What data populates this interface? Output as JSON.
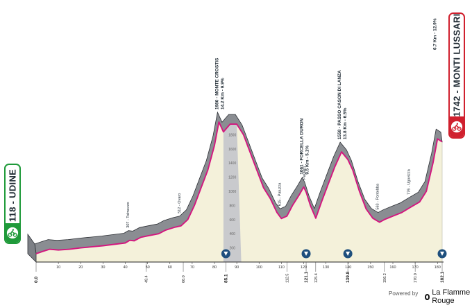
{
  "start": {
    "label": "118 - UDINE",
    "color": "#1f9a3a"
  },
  "finish": {
    "label": "1742 - MONTI LUSSARI",
    "color": "#d0202e",
    "climb_note": "6.7 Km - 12.9%"
  },
  "axis": {
    "distance_ticks": [
      "10",
      "20",
      "30",
      "40",
      "50",
      "60",
      "70",
      "80",
      "90",
      "100",
      "110",
      "120",
      "130",
      "140",
      "150",
      "160",
      "170",
      "180"
    ],
    "altitude_ticks": [
      "200",
      "400",
      "600",
      "800",
      "1000",
      "1200",
      "1400",
      "1600",
      "1800"
    ]
  },
  "km_markers": [
    "0.0",
    "49.4",
    "66.0",
    "85.1",
    "112.5",
    "121.1",
    "125.4",
    "139.8",
    "156.2",
    "170.0",
    "182.1"
  ],
  "profile": [
    {
      "km": 0,
      "alt": 118
    },
    {
      "km": 3,
      "alt": 150
    },
    {
      "km": 6,
      "alt": 180
    },
    {
      "km": 10,
      "alt": 170
    },
    {
      "km": 15,
      "alt": 180
    },
    {
      "km": 20,
      "alt": 200
    },
    {
      "km": 25,
      "alt": 215
    },
    {
      "km": 30,
      "alt": 230
    },
    {
      "km": 35,
      "alt": 250
    },
    {
      "km": 40,
      "alt": 270
    },
    {
      "km": 42,
      "alt": 307
    },
    {
      "km": 44,
      "alt": 300
    },
    {
      "km": 47,
      "alt": 350
    },
    {
      "km": 50,
      "alt": 370
    },
    {
      "km": 55,
      "alt": 400
    },
    {
      "km": 58,
      "alt": 450
    },
    {
      "km": 62,
      "alt": 490
    },
    {
      "km": 65,
      "alt": 512
    },
    {
      "km": 68,
      "alt": 600
    },
    {
      "km": 71,
      "alt": 800
    },
    {
      "km": 74,
      "alt": 1050
    },
    {
      "km": 77,
      "alt": 1300
    },
    {
      "km": 80,
      "alt": 1650
    },
    {
      "km": 82,
      "alt": 1980
    },
    {
      "km": 84,
      "alt": 1840
    },
    {
      "km": 87,
      "alt": 1950
    },
    {
      "km": 90,
      "alt": 1950
    },
    {
      "km": 93,
      "alt": 1800
    },
    {
      "km": 96,
      "alt": 1550
    },
    {
      "km": 99,
      "alt": 1300
    },
    {
      "km": 102,
      "alt": 1050
    },
    {
      "km": 105,
      "alt": 900
    },
    {
      "km": 108,
      "alt": 700
    },
    {
      "km": 110,
      "alt": 615
    },
    {
      "km": 112.5,
      "alt": 650
    },
    {
      "km": 115,
      "alt": 800
    },
    {
      "km": 118,
      "alt": 950
    },
    {
      "km": 120,
      "alt": 1061
    },
    {
      "km": 121.1,
      "alt": 990
    },
    {
      "km": 123,
      "alt": 800
    },
    {
      "km": 125.4,
      "alt": 620
    },
    {
      "km": 128,
      "alt": 850
    },
    {
      "km": 131,
      "alt": 1100
    },
    {
      "km": 134,
      "alt": 1350
    },
    {
      "km": 137,
      "alt": 1558
    },
    {
      "km": 139.8,
      "alt": 1450
    },
    {
      "km": 142,
      "alt": 1300
    },
    {
      "km": 145,
      "alt": 1000
    },
    {
      "km": 148,
      "alt": 750
    },
    {
      "km": 151,
      "alt": 620
    },
    {
      "km": 154,
      "alt": 563
    },
    {
      "km": 156.2,
      "alt": 600
    },
    {
      "km": 160,
      "alt": 650
    },
    {
      "km": 164,
      "alt": 700
    },
    {
      "km": 168,
      "alt": 776
    },
    {
      "km": 172,
      "alt": 850
    },
    {
      "km": 175,
      "alt": 1000
    },
    {
      "km": 178,
      "alt": 1400
    },
    {
      "km": 180,
      "alt": 1742
    },
    {
      "km": 182.1,
      "alt": 1700
    }
  ],
  "gpm_highlight": {
    "from_km": 84,
    "to_km": 92
  },
  "gpm_markers_km": [
    85.1,
    121.1,
    139.8,
    182.1
  ],
  "annotations": [
    {
      "km": 82,
      "alt": 1980,
      "lines": [
        "1980 - MONTE CROSTIS",
        "14.2 Km - 9.9%"
      ],
      "bold": true
    },
    {
      "km": 120,
      "alt": 1061,
      "lines": [
        "1061 - FORCELLA DURON",
        "9.5 Km - 5.1%"
      ],
      "bold": true
    },
    {
      "km": 137,
      "alt": 1558,
      "lines": [
        "1558 - PASSO CASON DI LANZA",
        "13.8 Km - 6.5%"
      ],
      "bold": true
    },
    {
      "km": 110,
      "alt": 615,
      "lines": [
        "615 - Paluzza"
      ],
      "bold": false
    },
    {
      "km": 121.1,
      "alt": 990,
      "lines": [
        "Paularo"
      ],
      "bold": false
    },
    {
      "km": 154,
      "alt": 563,
      "lines": [
        "563 - Pontebba"
      ],
      "bold": false
    },
    {
      "km": 168,
      "alt": 776,
      "lines": [
        "776 - Ugovizza"
      ],
      "bold": false
    },
    {
      "km": 65,
      "alt": 512,
      "lines": [
        "512 - Ovaro"
      ],
      "bold": false
    },
    {
      "km": 42,
      "alt": 307,
      "lines": [
        "307 - Tolmezzo"
      ],
      "bold": false
    }
  ],
  "colors": {
    "ribbon": "#d4167f",
    "profile_fill": "#f4f1da",
    "shoulder": "#8a8d92",
    "gpm_band": "#c9cacd",
    "marker": "#1e4f7d"
  },
  "footer": {
    "powered_by": "Powered by",
    "brand": "La Flamme Rouge"
  }
}
